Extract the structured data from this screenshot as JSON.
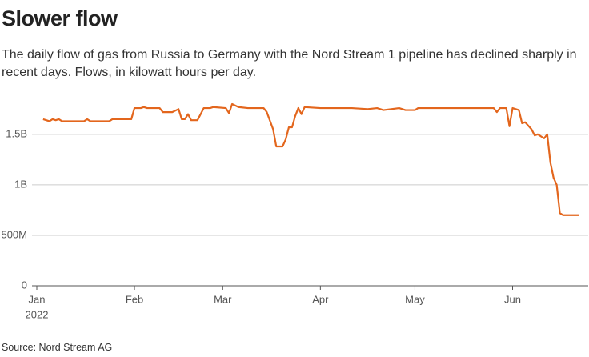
{
  "chart_data": {
    "type": "line",
    "title": "Slower flow",
    "subtitle": "The daily flow of gas from Russia to Germany with the Nord Stream 1 pipeline has declined sharply in recent days. Flows, in kilowatt hours per day.",
    "source": "Source: Nord Stream AG",
    "x_year_label": "2022",
    "x": [
      2,
      3,
      4,
      5,
      6,
      7,
      8,
      12,
      15,
      16,
      17,
      21,
      23,
      24,
      30,
      31,
      33,
      34,
      35,
      38,
      39,
      40,
      43,
      45,
      46,
      47,
      48,
      49,
      51,
      52,
      53,
      55,
      56,
      60,
      61,
      62,
      64,
      67,
      70,
      72,
      73,
      75,
      76,
      78,
      79,
      80,
      81,
      82,
      83,
      84,
      85,
      90,
      100,
      105,
      108,
      110,
      115,
      117,
      120,
      121,
      131,
      141,
      145,
      146,
      147,
      149,
      150,
      151,
      153,
      154,
      155,
      157,
      158,
      159,
      161,
      162,
      163,
      164,
      165,
      166,
      167,
      169,
      172
    ],
    "series": [
      {
        "name": "Flow",
        "color": "#e3661d",
        "values": [
          1650000000,
          1640000000,
          1630000000,
          1650000000,
          1640000000,
          1650000000,
          1630000000,
          1630000000,
          1630000000,
          1650000000,
          1630000000,
          1630000000,
          1630000000,
          1650000000,
          1650000000,
          1760000000,
          1760000000,
          1770000000,
          1760000000,
          1760000000,
          1760000000,
          1720000000,
          1720000000,
          1750000000,
          1650000000,
          1650000000,
          1700000000,
          1640000000,
          1640000000,
          1700000000,
          1760000000,
          1760000000,
          1770000000,
          1760000000,
          1710000000,
          1800000000,
          1770000000,
          1760000000,
          1760000000,
          1760000000,
          1720000000,
          1550000000,
          1380000000,
          1380000000,
          1450000000,
          1570000000,
          1570000000,
          1680000000,
          1760000000,
          1700000000,
          1770000000,
          1760000000,
          1760000000,
          1750000000,
          1760000000,
          1740000000,
          1760000000,
          1740000000,
          1740000000,
          1760000000,
          1760000000,
          1760000000,
          1760000000,
          1720000000,
          1760000000,
          1760000000,
          1580000000,
          1760000000,
          1740000000,
          1610000000,
          1620000000,
          1550000000,
          1490000000,
          1500000000,
          1460000000,
          1500000000,
          1220000000,
          1070000000,
          1000000000,
          720000000,
          700000000,
          700000000,
          700000000
        ]
      }
    ],
    "xlim": [
      0,
      175
    ],
    "xticks": [
      {
        "value": 0,
        "label": "Jan"
      },
      {
        "value": 31,
        "label": "Feb"
      },
      {
        "value": 59,
        "label": "Mar"
      },
      {
        "value": 90,
        "label": "Apr"
      },
      {
        "value": 120,
        "label": "May"
      },
      {
        "value": 151,
        "label": "Jun"
      }
    ],
    "ylim": [
      0,
      1800000000
    ],
    "yticks": [
      0,
      {
        "value": 500000000,
        "label": "500M"
      },
      {
        "value": 1000000000,
        "label": "1B"
      },
      {
        "value": 1500000000,
        "label": "1.5B"
      }
    ],
    "grid": true
  }
}
